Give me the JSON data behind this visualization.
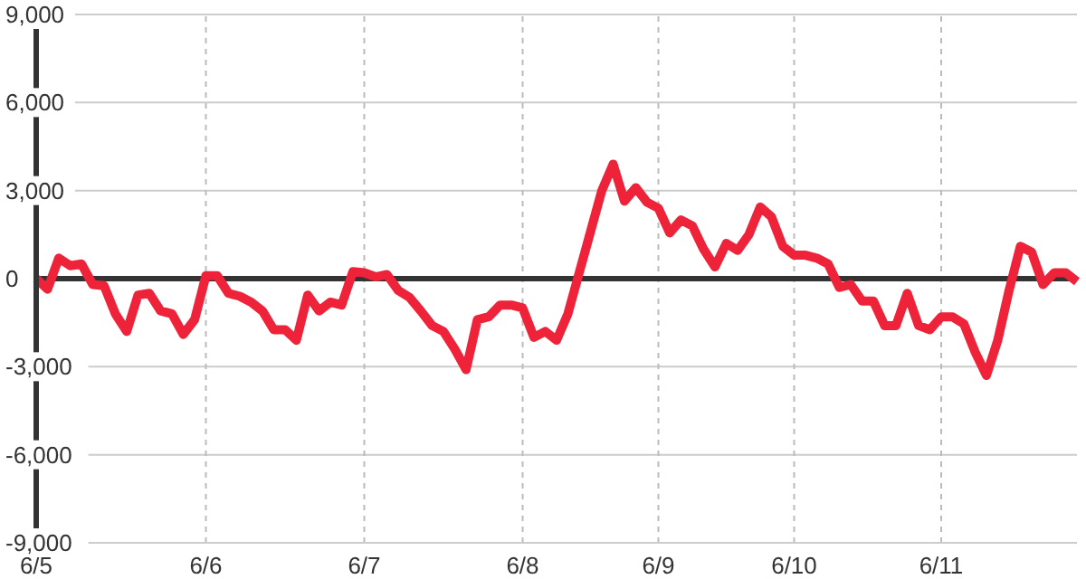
{
  "chart_data": {
    "type": "line",
    "categories": [
      "6/5",
      null,
      null,
      null,
      null,
      null,
      null,
      null,
      null,
      null,
      null,
      null,
      null,
      null,
      null,
      "6/6",
      null,
      null,
      null,
      null,
      null,
      null,
      null,
      null,
      null,
      null,
      null,
      null,
      null,
      "6/7",
      null,
      null,
      null,
      null,
      null,
      null,
      null,
      null,
      null,
      null,
      null,
      null,
      null,
      "6/8",
      null,
      null,
      null,
      null,
      null,
      null,
      null,
      null,
      null,
      null,
      null,
      "6/9",
      null,
      null,
      null,
      null,
      null,
      null,
      null,
      null,
      null,
      null,
      null,
      "6/10",
      null,
      null,
      null,
      null,
      null,
      null,
      null,
      null,
      null,
      null,
      null,
      null,
      "6/11",
      null,
      null,
      null,
      null,
      null,
      null,
      null,
      null,
      null,
      null,
      null,
      null
    ],
    "series": [
      {
        "color": "#ee2238",
        "values": [
          0,
          -360,
          700,
          440,
          500,
          -200,
          -240,
          -1200,
          -1800,
          -560,
          -500,
          -1100,
          -1200,
          -1900,
          -1400,
          100,
          100,
          -500,
          -600,
          -800,
          -1100,
          -1740,
          -1740,
          -2100,
          -560,
          -1100,
          -800,
          -900,
          240,
          200,
          60,
          140,
          -400,
          -640,
          -1100,
          -1600,
          -1800,
          -2400,
          -3100,
          -1400,
          -1300,
          -900,
          -900,
          -1000,
          -2000,
          -1800,
          -2100,
          -1200,
          200,
          1600,
          3000,
          3900,
          2640,
          3100,
          2600,
          2400,
          1560,
          2000,
          1800,
          1000,
          400,
          1200,
          960,
          1500,
          2440,
          2100,
          1100,
          800,
          800,
          700,
          500,
          -300,
          -200,
          -760,
          -760,
          -1600,
          -1600,
          -500,
          -1600,
          -1740,
          -1300,
          -1300,
          -1540,
          -2500,
          -3300,
          -2100,
          -400,
          1100,
          900,
          -200,
          200,
          200,
          -100
        ]
      }
    ],
    "ylim": [
      -9000,
      9000
    ],
    "yticks": [
      {
        "value": -9000,
        "label": "-9,000"
      },
      {
        "value": -6000,
        "label": "-6,000"
      },
      {
        "value": -3000,
        "label": "-3,000"
      },
      0,
      {
        "value": 3000,
        "label": "3,000"
      },
      {
        "value": 6000,
        "label": "6,000"
      },
      {
        "value": 9000,
        "label": "9,000"
      }
    ],
    "grid": true,
    "marker": "none",
    "line_style": "solid",
    "ref_lines": [
      {
        "axis": "y",
        "value": 0,
        "color": "#333333"
      }
    ]
  }
}
